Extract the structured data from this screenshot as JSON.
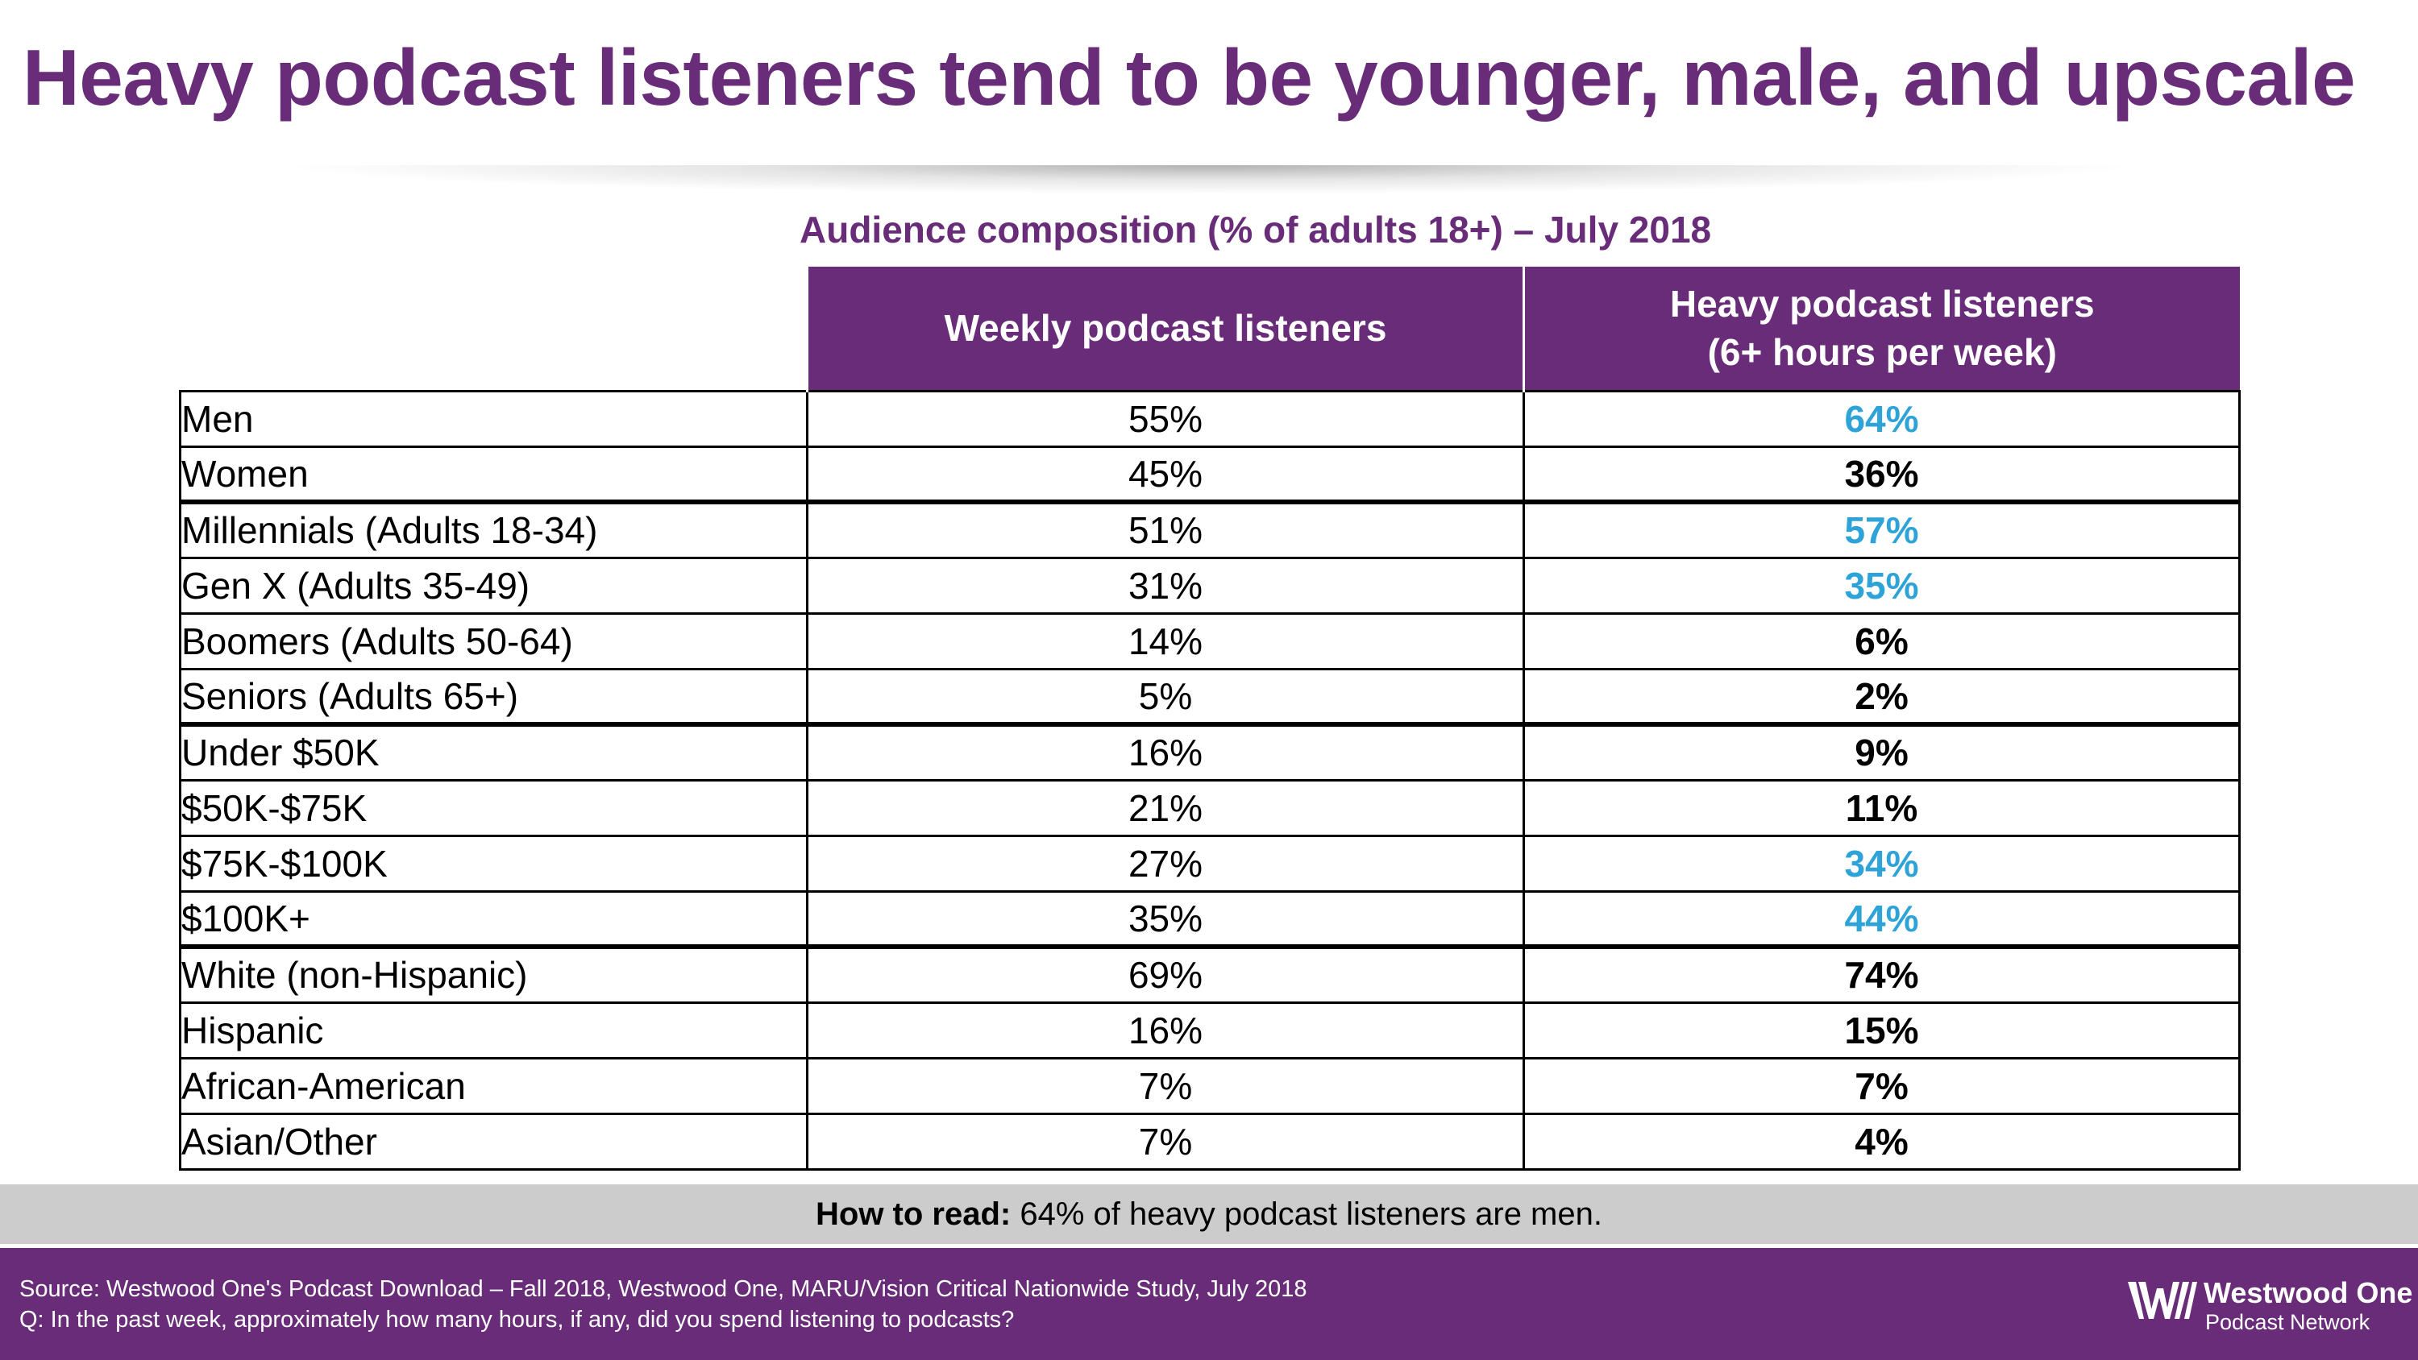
{
  "title": "Heavy podcast listeners tend to be younger, male, and upscale",
  "chart_data": {
    "type": "table",
    "title": "Audience composition (% of adults 18+) – July 2018",
    "columns": {
      "weekly": "Weekly podcast listeners",
      "heavy_line1": "Heavy podcast listeners",
      "heavy_line2": "(6+ hours per week)"
    },
    "rows": [
      {
        "label": "Men",
        "weekly": "55%",
        "heavy": "64%",
        "highlight": true
      },
      {
        "label": "Women",
        "weekly": "45%",
        "heavy": "36%",
        "highlight": false
      },
      {
        "label": "Millennials (Adults 18-34)",
        "weekly": "51%",
        "heavy": "57%",
        "highlight": true
      },
      {
        "label": "Gen X (Adults 35-49)",
        "weekly": "31%",
        "heavy": "35%",
        "highlight": true
      },
      {
        "label": "Boomers (Adults 50-64)",
        "weekly": "14%",
        "heavy": "6%",
        "highlight": false
      },
      {
        "label": "Seniors (Adults 65+)",
        "weekly": "5%",
        "heavy": "2%",
        "highlight": false
      },
      {
        "label": "Under $50K",
        "weekly": "16%",
        "heavy": "9%",
        "highlight": false
      },
      {
        "label": "$50K-$75K",
        "weekly": "21%",
        "heavy": "11%",
        "highlight": false
      },
      {
        "label": "$75K-$100K",
        "weekly": "27%",
        "heavy": "34%",
        "highlight": true
      },
      {
        "label": "$100K+",
        "weekly": "35%",
        "heavy": "44%",
        "highlight": true
      },
      {
        "label": "White (non-Hispanic)",
        "weekly": "69%",
        "heavy": "74%",
        "highlight": false
      },
      {
        "label": "Hispanic",
        "weekly": "16%",
        "heavy": "15%",
        "highlight": false
      },
      {
        "label": "African-American",
        "weekly": "7%",
        "heavy": "7%",
        "highlight": false
      },
      {
        "label": "Asian/Other",
        "weekly": "7%",
        "heavy": "4%",
        "highlight": false
      }
    ],
    "group_starts": [
      2,
      6,
      10
    ]
  },
  "how_to_read": {
    "label": "How to read:",
    "text": "64% of heavy podcast listeners are men."
  },
  "footer": {
    "source": "Source: Westwood One's Podcast Download – Fall 2018, Westwood One, MARU/Vision Critical Nationwide Study, July 2018",
    "question": "Q: In the past week, approximately how many hours, if any, did you spend listening to podcasts?"
  },
  "logo": {
    "name": "Westwood One",
    "sub": "Podcast Network"
  },
  "colors": {
    "brand_purple": "#682c79",
    "highlight_blue": "#2ea3d8",
    "band_gray": "#cccccc"
  },
  "icons": {
    "logo_mark": "westwood-one-w-icon"
  }
}
